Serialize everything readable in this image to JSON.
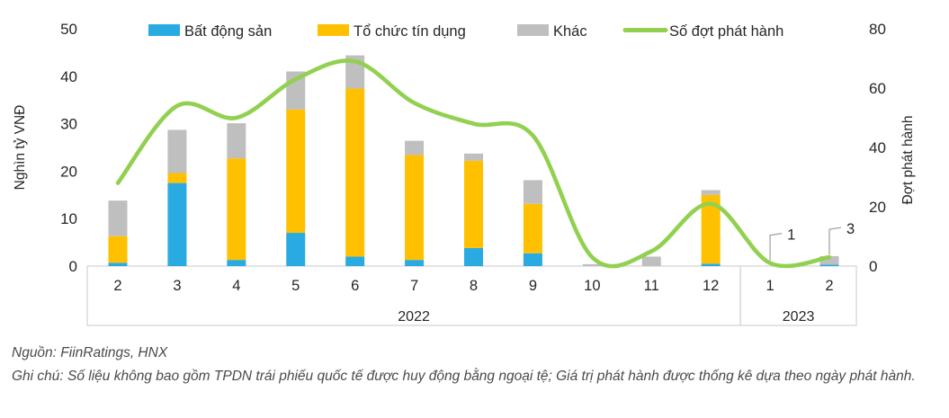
{
  "chart_data": {
    "type": "bar",
    "subtype": "stacked-bars-with-line",
    "categories": [
      "2",
      "3",
      "4",
      "5",
      "6",
      "7",
      "8",
      "9",
      "10",
      "11",
      "12",
      "1",
      "2"
    ],
    "category_groups": [
      {
        "label": "2022",
        "from": 0,
        "to": 10
      },
      {
        "label": "2023",
        "from": 11,
        "to": 12
      }
    ],
    "bar_series": [
      {
        "name": "Bất động sản",
        "color": "#29ABE2",
        "axis": "left",
        "values": [
          0.7,
          17.5,
          1.3,
          7.0,
          2.0,
          1.3,
          3.8,
          2.7,
          0,
          0,
          0.5,
          0,
          0.3
        ]
      },
      {
        "name": "Tổ chức tín dụng",
        "color": "#FFC000",
        "axis": "left",
        "values": [
          5.6,
          2.1,
          21.4,
          26.0,
          35.4,
          22.1,
          18.4,
          10.4,
          0,
          0,
          14.5,
          0,
          0
        ]
      },
      {
        "name": "Khác",
        "color": "#BFBFBF",
        "axis": "left",
        "values": [
          7.5,
          9.1,
          7.4,
          8.0,
          7.0,
          3.0,
          1.5,
          5.0,
          0.4,
          2.0,
          1.0,
          0,
          1.8
        ]
      }
    ],
    "line_series": {
      "name": "Số đợt phát hành",
      "color": "#92D050",
      "axis": "right",
      "values": [
        28,
        54,
        50,
        63,
        69,
        55,
        48,
        44,
        3,
        5,
        21,
        1,
        3
      ]
    },
    "left_axis": {
      "title": "Nghìn tỷ VNĐ",
      "ticks": [
        0,
        10,
        20,
        30,
        40,
        50
      ],
      "range": [
        0,
        50
      ]
    },
    "right_axis": {
      "title": "Đợt phát hành",
      "ticks": [
        0,
        20,
        40,
        60,
        80
      ],
      "range": [
        0,
        80
      ]
    },
    "annotations": [
      {
        "text": "1",
        "category_index": 11
      },
      {
        "text": "3",
        "category_index": 12
      }
    ],
    "grid": false,
    "legend_position": "top"
  },
  "legend": [
    {
      "label": "Bất động sản",
      "type": "bar",
      "color": "#29ABE2"
    },
    {
      "label": "Tổ chức tín dụng",
      "type": "bar",
      "color": "#FFC000"
    },
    {
      "label": "Khác",
      "type": "bar",
      "color": "#BFBFBF"
    },
    {
      "label": "Số đợt phát hành",
      "type": "line",
      "color": "#92D050"
    }
  ],
  "notes": {
    "source": "Nguồn: FiinRatings, HNX",
    "note": "Ghi chú: Số liệu không bao gồm TPDN trái phiếu quốc tế được huy động bằng ngoại tệ; Giá trị phát hành được thống kê dựa theo ngày phát hành."
  },
  "colors": {
    "real_estate": "#29ABE2",
    "credit_institutions": "#FFC000",
    "other": "#BFBFBF",
    "issuance_line": "#92D050",
    "axis_border": "#D9D9D9",
    "leader_line": "#A6A6A6",
    "text": "#262626",
    "notes_text": "#4a4a4a"
  }
}
